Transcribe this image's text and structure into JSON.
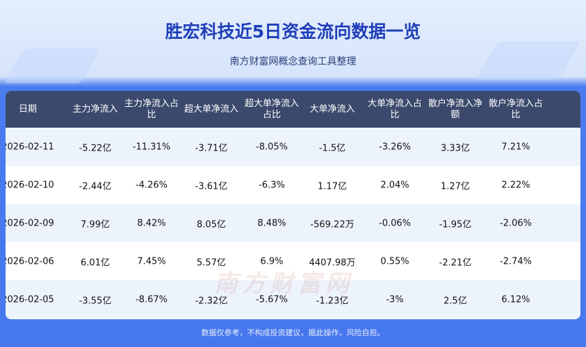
{
  "title": "胜宏科技近5日资金流向数据一览",
  "subtitle": "南方财富网概念查询工具整理",
  "watermark": "南方财富网 southmoney.com",
  "colors": {
    "background": "#4677ee",
    "header": "#3b4a6c",
    "title": "#1f3fb8",
    "row_alt": "#edf3fd"
  },
  "table": {
    "headers": [
      "日期",
      "主力净流入",
      "主力净流入占比",
      "超大单净流入",
      "超大单净流入占比",
      "大单净流入",
      "大单净流入占比",
      "散户净流入净额",
      "散户净流入占比"
    ],
    "rows": [
      [
        "2026-02-11",
        "-5.22亿",
        "-11.31%",
        "-3.71亿",
        "-8.05%",
        "-1.5亿",
        "-3.26%",
        "3.33亿",
        "7.21%"
      ],
      [
        "2026-02-10",
        "-2.44亿",
        "-4.26%",
        "-3.61亿",
        "-6.3%",
        "1.17亿",
        "2.04%",
        "1.27亿",
        "2.22%"
      ],
      [
        "2026-02-09",
        "7.99亿",
        "8.42%",
        "8.05亿",
        "8.48%",
        "-569.22万",
        "-0.06%",
        "-1.95亿",
        "-2.06%"
      ],
      [
        "2026-02-06",
        "6.01亿",
        "7.45%",
        "5.57亿",
        "6.9%",
        "4407.98万",
        "0.55%",
        "-2.21亿",
        "-2.74%"
      ],
      [
        "2026-02-05",
        "-3.55亿",
        "-8.67%",
        "-2.32亿",
        "-5.67%",
        "-1.23亿",
        "-3%",
        "2.5亿",
        "6.12%"
      ]
    ]
  },
  "footer": "数据仅参考，不构成投资建议，据此操作，风险自担。"
}
